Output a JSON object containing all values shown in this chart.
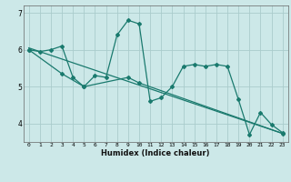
{
  "xlabel": "Humidex (Indice chaleur)",
  "bg_color": "#cce8e8",
  "grid_color": "#aacccc",
  "line_color": "#1a7a6e",
  "line1_x": [
    0,
    1,
    2,
    3,
    4,
    5,
    6,
    7,
    8,
    9,
    10,
    11,
    12,
    13,
    14,
    15,
    16,
    17,
    18,
    19,
    20,
    21,
    22,
    23
  ],
  "line1_y": [
    6.0,
    5.95,
    6.0,
    6.1,
    5.25,
    5.0,
    5.3,
    5.25,
    6.4,
    6.8,
    6.7,
    4.6,
    4.7,
    5.0,
    5.55,
    5.6,
    5.55,
    5.6,
    5.55,
    4.65,
    3.7,
    4.3,
    3.97,
    3.75
  ],
  "line2_x": [
    0,
    3,
    5,
    9,
    10,
    23
  ],
  "line2_y": [
    6.0,
    5.35,
    5.0,
    5.25,
    5.1,
    3.73
  ],
  "line3_x": [
    0,
    23
  ],
  "line3_y": [
    6.05,
    3.73
  ],
  "yticks": [
    4,
    5,
    6,
    7
  ],
  "xticks": [
    0,
    1,
    2,
    3,
    4,
    5,
    6,
    7,
    8,
    9,
    10,
    11,
    12,
    13,
    14,
    15,
    16,
    17,
    18,
    19,
    20,
    21,
    22,
    23
  ],
  "xlim": [
    -0.5,
    23.5
  ],
  "ylim": [
    3.5,
    7.2
  ],
  "xtick_fontsize": 4.5,
  "ytick_fontsize": 5.5,
  "xlabel_fontsize": 6.0
}
